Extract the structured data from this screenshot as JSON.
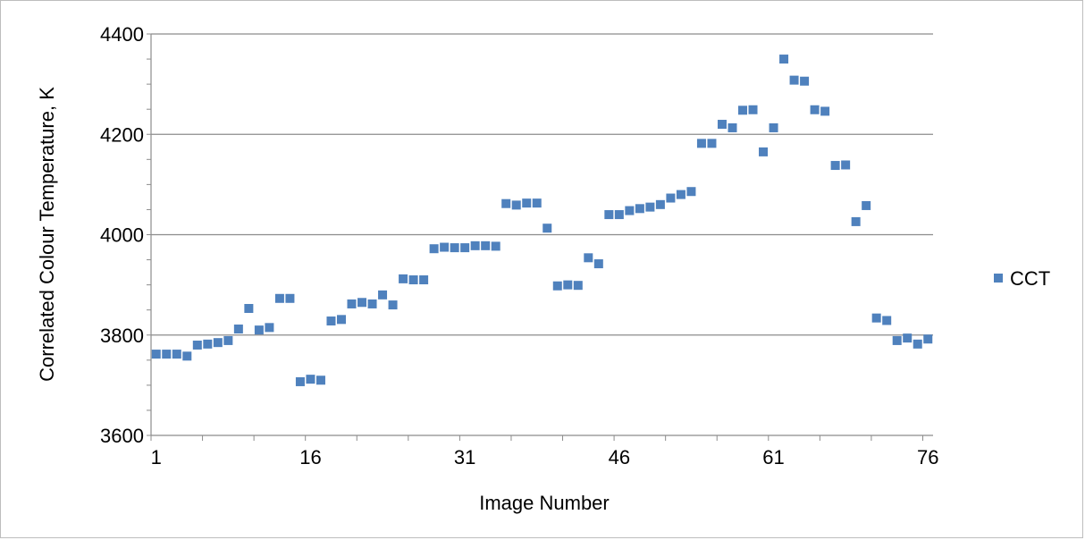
{
  "chart_data": {
    "type": "scatter",
    "xlabel": "Image Number",
    "ylabel": "Correlated Colour Temperature, K",
    "xlim": [
      1,
      76
    ],
    "ylim": [
      3600,
      4400
    ],
    "x_ticks": [
      1,
      16,
      31,
      46,
      61,
      76
    ],
    "y_ticks": [
      3600,
      3800,
      4000,
      4200,
      4400
    ],
    "grid": "horizontal",
    "legend_position": "right",
    "series": [
      {
        "name": "CCT",
        "color": "#4f81bd",
        "marker": "square",
        "x": [
          1,
          2,
          3,
          4,
          5,
          6,
          7,
          8,
          9,
          10,
          11,
          12,
          13,
          14,
          15,
          16,
          17,
          18,
          19,
          20,
          21,
          22,
          23,
          24,
          25,
          26,
          27,
          28,
          29,
          30,
          31,
          32,
          33,
          34,
          35,
          36,
          37,
          38,
          39,
          40,
          41,
          42,
          43,
          44,
          45,
          46,
          47,
          48,
          49,
          50,
          51,
          52,
          53,
          54,
          55,
          56,
          57,
          58,
          59,
          60,
          61,
          62,
          63,
          64,
          65,
          66,
          67,
          68,
          69,
          70,
          71,
          72,
          73,
          74,
          75,
          76
        ],
        "y": [
          3762,
          3762,
          3762,
          3758,
          3780,
          3782,
          3785,
          3789,
          3812,
          3853,
          3810,
          3815,
          3873,
          3873,
          3707,
          3712,
          3710,
          3828,
          3831,
          3862,
          3865,
          3862,
          3880,
          3860,
          3912,
          3910,
          3910,
          3972,
          3975,
          3974,
          3974,
          3978,
          3978,
          3977,
          4062,
          4059,
          4063,
          4063,
          4013,
          3898,
          3900,
          3899,
          3954,
          3942,
          4040,
          4040,
          4048,
          4052,
          4055,
          4060,
          4073,
          4080,
          4086,
          4182,
          4182,
          4220,
          4213,
          4248,
          4249,
          4165,
          4213,
          4350,
          4308,
          4306,
          4249,
          4246,
          4138,
          4139,
          4026,
          4058,
          3834,
          3829,
          3789,
          3794,
          3782,
          3792
        ]
      }
    ]
  }
}
